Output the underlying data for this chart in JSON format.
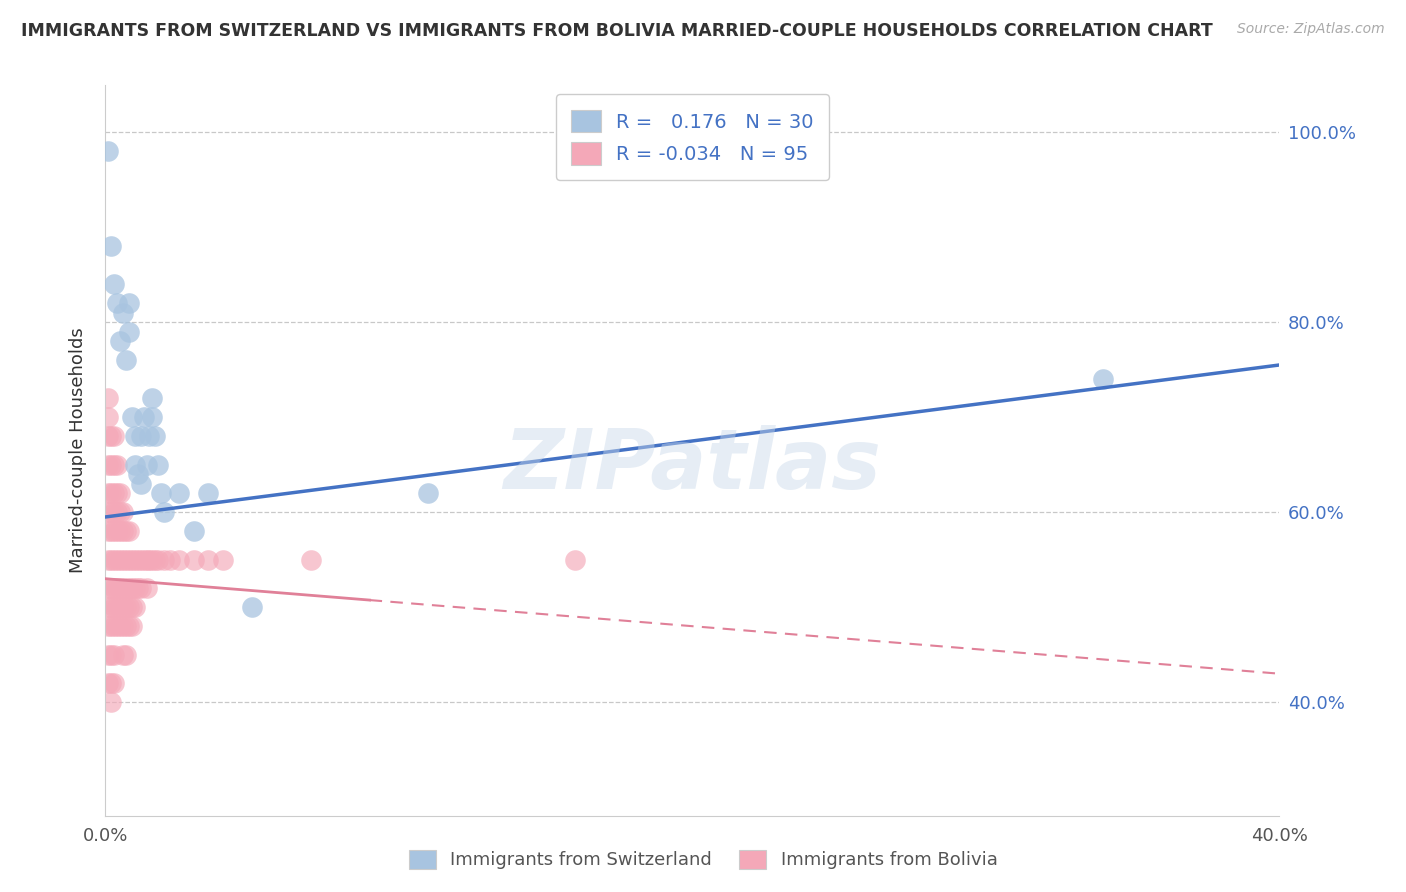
{
  "title": "IMMIGRANTS FROM SWITZERLAND VS IMMIGRANTS FROM BOLIVIA MARRIED-COUPLE HOUSEHOLDS CORRELATION CHART",
  "source": "Source: ZipAtlas.com",
  "ylabel": "Married-couple Households",
  "xlim": [
    0.0,
    0.4
  ],
  "ylim": [
    0.28,
    1.05
  ],
  "R_swiss": 0.176,
  "N_swiss": 30,
  "R_bolivia": -0.034,
  "N_bolivia": 95,
  "color_swiss": "#a8c4e0",
  "color_bolivia": "#f4a8b8",
  "line_color_swiss": "#4472c4",
  "line_color_bolivia": "#e08098",
  "watermark": "ZIPatlas",
  "swiss_x": [
    0.001,
    0.002,
    0.003,
    0.004,
    0.005,
    0.006,
    0.007,
    0.008,
    0.008,
    0.009,
    0.01,
    0.01,
    0.011,
    0.012,
    0.012,
    0.013,
    0.014,
    0.015,
    0.016,
    0.016,
    0.017,
    0.018,
    0.019,
    0.02,
    0.025,
    0.03,
    0.035,
    0.05,
    0.11,
    0.34
  ],
  "swiss_y": [
    0.98,
    0.88,
    0.84,
    0.82,
    0.78,
    0.81,
    0.76,
    0.82,
    0.79,
    0.7,
    0.68,
    0.65,
    0.64,
    0.68,
    0.63,
    0.7,
    0.65,
    0.68,
    0.7,
    0.72,
    0.68,
    0.65,
    0.62,
    0.6,
    0.62,
    0.58,
    0.62,
    0.5,
    0.62,
    0.74
  ],
  "bolivia_x": [
    0.001,
    0.001,
    0.001,
    0.001,
    0.001,
    0.001,
    0.001,
    0.001,
    0.001,
    0.001,
    0.001,
    0.001,
    0.001,
    0.002,
    0.002,
    0.002,
    0.002,
    0.002,
    0.002,
    0.002,
    0.002,
    0.002,
    0.002,
    0.002,
    0.002,
    0.003,
    0.003,
    0.003,
    0.003,
    0.003,
    0.003,
    0.003,
    0.003,
    0.003,
    0.003,
    0.003,
    0.004,
    0.004,
    0.004,
    0.004,
    0.004,
    0.004,
    0.004,
    0.004,
    0.005,
    0.005,
    0.005,
    0.005,
    0.005,
    0.005,
    0.005,
    0.006,
    0.006,
    0.006,
    0.006,
    0.006,
    0.006,
    0.006,
    0.007,
    0.007,
    0.007,
    0.007,
    0.007,
    0.007,
    0.008,
    0.008,
    0.008,
    0.008,
    0.008,
    0.009,
    0.009,
    0.009,
    0.009,
    0.01,
    0.01,
    0.01,
    0.011,
    0.011,
    0.012,
    0.012,
    0.013,
    0.014,
    0.014,
    0.015,
    0.016,
    0.017,
    0.018,
    0.02,
    0.022,
    0.025,
    0.03,
    0.035,
    0.04,
    0.07,
    0.16
  ],
  "bolivia_y": [
    0.72,
    0.7,
    0.68,
    0.65,
    0.62,
    0.6,
    0.58,
    0.55,
    0.52,
    0.5,
    0.48,
    0.45,
    0.42,
    0.68,
    0.65,
    0.62,
    0.6,
    0.58,
    0.55,
    0.52,
    0.5,
    0.48,
    0.45,
    0.42,
    0.4,
    0.68,
    0.65,
    0.62,
    0.6,
    0.58,
    0.55,
    0.52,
    0.5,
    0.48,
    0.45,
    0.42,
    0.65,
    0.62,
    0.6,
    0.58,
    0.55,
    0.52,
    0.5,
    0.48,
    0.62,
    0.6,
    0.58,
    0.55,
    0.52,
    0.5,
    0.48,
    0.6,
    0.58,
    0.55,
    0.52,
    0.5,
    0.48,
    0.45,
    0.58,
    0.55,
    0.52,
    0.5,
    0.48,
    0.45,
    0.58,
    0.55,
    0.52,
    0.5,
    0.48,
    0.55,
    0.52,
    0.5,
    0.48,
    0.55,
    0.52,
    0.5,
    0.55,
    0.52,
    0.55,
    0.52,
    0.55,
    0.55,
    0.52,
    0.55,
    0.55,
    0.55,
    0.55,
    0.55,
    0.55,
    0.55,
    0.55,
    0.55,
    0.55,
    0.55,
    0.55
  ]
}
